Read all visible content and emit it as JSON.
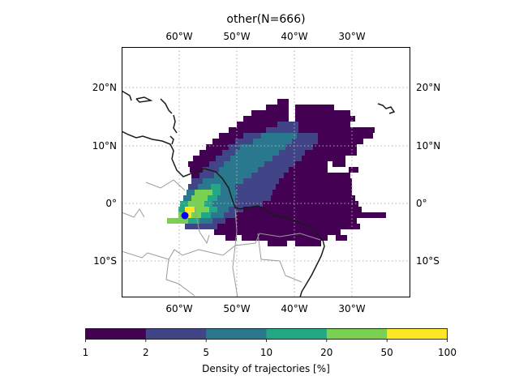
{
  "title": "other(N=666)",
  "lon_ticks": [
    "60°W",
    "50°W",
    "40°W",
    "30°W"
  ],
  "lat_ticks": [
    "20°N",
    "10°N",
    "0°",
    "10°S"
  ],
  "colorbar": {
    "label": "Density of trajectories [%]",
    "tick_labels": [
      "1",
      "2",
      "5",
      "10",
      "20",
      "50",
      "100"
    ],
    "colors": [
      "#440154",
      "#414487",
      "#2a788e",
      "#22a884",
      "#7ad151",
      "#fde725"
    ]
  },
  "map": {
    "lon_range": [
      -70,
      -20
    ],
    "lat_range": [
      -16.5,
      27
    ],
    "grid": true,
    "origin_marker_color": "#0000ff"
  }
}
